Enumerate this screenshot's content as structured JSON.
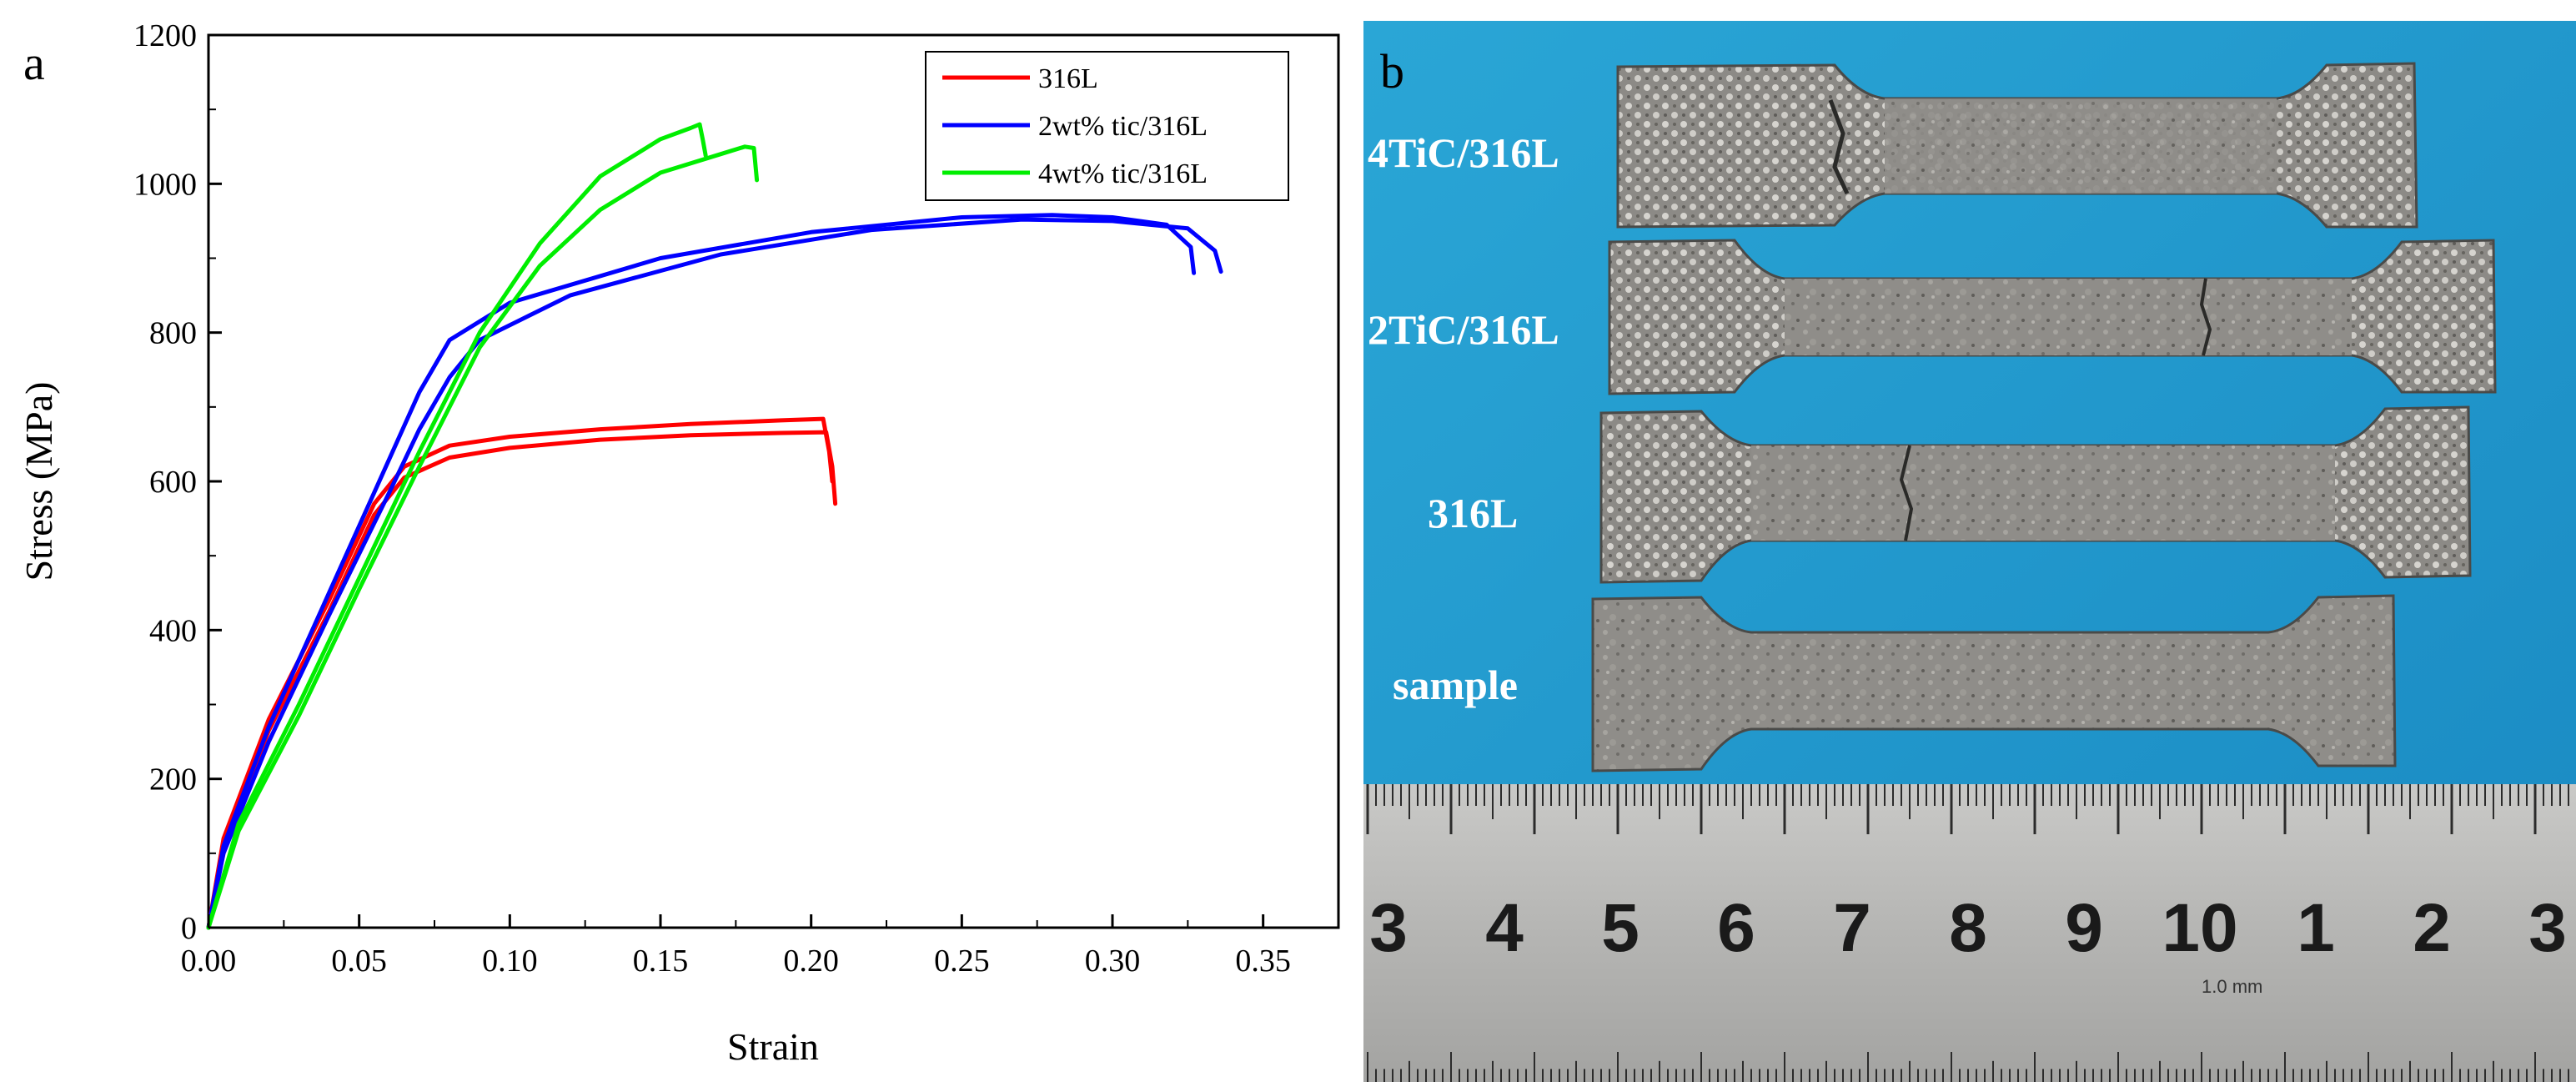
{
  "panel_a": {
    "label": "a"
  },
  "panel_b": {
    "label": "b",
    "sample_labels": [
      "4TiC/316L",
      "2TiC/316L",
      "316L",
      "sample"
    ],
    "ruler": {
      "numbers": [
        "3",
        "4",
        "5",
        "6",
        "7",
        "8",
        "9",
        "10",
        "1",
        "2",
        "3"
      ],
      "unit_text": "1.0 mm"
    }
  },
  "colors": {
    "316L": "#ff0000",
    "2wt% tic/316L": "#0000ff",
    "4wt% tic/316L": "#00ee00",
    "photo_background": "#1f9fd0"
  },
  "chart_data": {
    "type": "line",
    "title": "",
    "xlabel": "Strain",
    "ylabel": "Stress (MPa)",
    "xlim": [
      0,
      0.375
    ],
    "ylim": [
      0,
      1200
    ],
    "xticks": [
      "0.00",
      "0.05",
      "0.10",
      "0.15",
      "0.20",
      "0.25",
      "0.30",
      "0.35"
    ],
    "yticks": [
      "0",
      "200",
      "400",
      "600",
      "800",
      "1000",
      "1200"
    ],
    "grid": false,
    "legend_position": "top-right",
    "legend": [
      "316L",
      "2wt% tic/316L",
      "4wt% tic/316L"
    ],
    "series": [
      {
        "name": "316L",
        "curves": [
          {
            "x": [
              0,
              0.005,
              0.02,
              0.04,
              0.055,
              0.065,
              0.08,
              0.1,
              0.13,
              0.16,
              0.19,
              0.204,
              0.206,
              0.207
            ],
            "y": [
              0,
              120,
              280,
              440,
              570,
              620,
              648,
              660,
              670,
              677,
              682,
              684,
              640,
              600
            ]
          },
          {
            "x": [
              0,
              0.005,
              0.02,
              0.04,
              0.055,
              0.065,
              0.08,
              0.1,
              0.13,
              0.16,
              0.19,
              0.205,
              0.207,
              0.208
            ],
            "y": [
              0,
              110,
              265,
              425,
              555,
              605,
              632,
              645,
              656,
              662,
              665,
              666,
              620,
              570
            ]
          }
        ]
      },
      {
        "name": "2wt% tic/316L",
        "curves": [
          {
            "x": [
              0,
              0.005,
              0.02,
              0.04,
              0.06,
              0.07,
              0.08,
              0.1,
              0.15,
              0.2,
              0.25,
              0.28,
              0.3,
              0.318,
              0.326,
              0.327
            ],
            "y": [
              0,
              110,
              270,
              450,
              630,
              720,
              790,
              840,
              900,
              935,
              955,
              958,
              955,
              945,
              915,
              880
            ]
          },
          {
            "x": [
              0,
              0.005,
              0.02,
              0.04,
              0.06,
              0.07,
              0.08,
              0.09,
              0.12,
              0.17,
              0.22,
              0.27,
              0.3,
              0.325,
              0.334,
              0.336
            ],
            "y": [
              0,
              100,
              250,
              420,
              585,
              670,
              740,
              790,
              850,
              905,
              938,
              952,
              950,
              940,
              910,
              882
            ]
          }
        ]
      },
      {
        "name": "4wt% tic/316L",
        "curves": [
          {
            "x": [
              0,
              0.01,
              0.03,
              0.05,
              0.07,
              0.09,
              0.11,
              0.13,
              0.15,
              0.16,
              0.163,
              0.164,
              0.165
            ],
            "y": [
              0,
              140,
              300,
              470,
              640,
              800,
              920,
              1010,
              1060,
              1075,
              1080,
              1060,
              1038
            ]
          },
          {
            "x": [
              0,
              0.01,
              0.03,
              0.05,
              0.07,
              0.09,
              0.11,
              0.13,
              0.15,
              0.17,
              0.178,
              0.181,
              0.182
            ],
            "y": [
              0,
              130,
              285,
              455,
              620,
              780,
              890,
              965,
              1015,
              1040,
              1050,
              1048,
              1005
            ]
          }
        ]
      }
    ]
  }
}
